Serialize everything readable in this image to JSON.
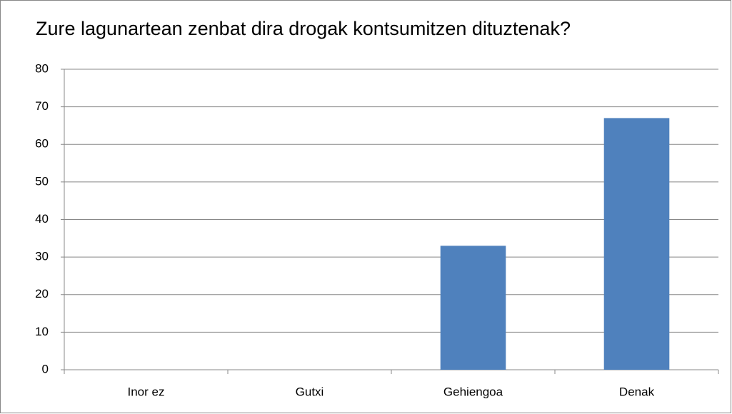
{
  "chart_data": {
    "type": "bar",
    "title": "Zure lagunartean zenbat dira drogak kontsumitzen dituztenak?",
    "categories": [
      "Inor ez",
      "Gutxi",
      "Gehiengoa",
      "Denak"
    ],
    "values": [
      0,
      0,
      33,
      67
    ],
    "color": "#4f81bd",
    "ylim": [
      0,
      80
    ],
    "yticks": [
      0,
      10,
      20,
      30,
      40,
      50,
      60,
      70,
      80
    ],
    "grid": true
  }
}
